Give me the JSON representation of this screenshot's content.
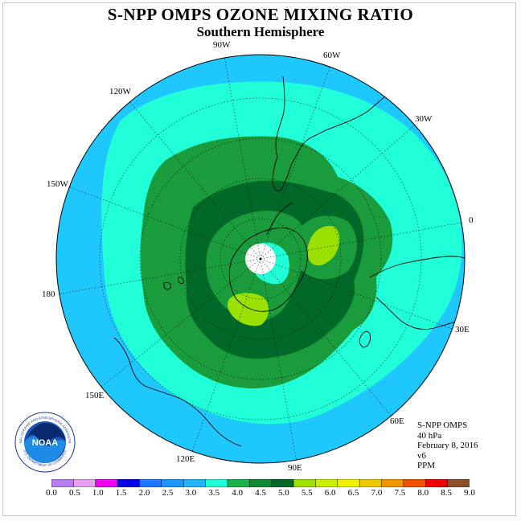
{
  "title": "S-NPP OMPS OZONE MIXING RATIO",
  "subtitle": "Southern Hemisphere",
  "longitude_labels": [
    "90W",
    "60W",
    "30W",
    "0",
    "30E",
    "60E",
    "90E",
    "120E",
    "150E",
    "180",
    "150W",
    "120W"
  ],
  "info": {
    "instrument": "S-NPP OMPS",
    "level": "40 hPa",
    "date": "February 8, 2016",
    "version": "v6",
    "units": "PPM"
  },
  "logo": {
    "text": "NOAA",
    "ring_text": "NATIONAL OCEANIC AND ATMOSPHERIC ADMINISTRATION",
    "bottom_text": "U.S. DEPARTMENT OF COMMERCE",
    "icon": "noaa-logo"
  },
  "colorbar": {
    "labels": [
      "0.0",
      "0.5",
      "1.0",
      "1.5",
      "2.0",
      "2.5",
      "3.0",
      "3.5",
      "4.0",
      "4.5",
      "5.0",
      "5.5",
      "6.0",
      "6.5",
      "7.0",
      "7.5",
      "8.0",
      "8.5",
      "9.0"
    ],
    "colors": [
      "#b77cf0",
      "#e6a0f0",
      "#f000f0",
      "#0000e6",
      "#1e78ff",
      "#1e96ff",
      "#22b4ff",
      "#20ffd8",
      "#18b048",
      "#108c38",
      "#006828",
      "#9ae000",
      "#c8f000",
      "#f0f000",
      "#f0c800",
      "#f09600",
      "#f05000",
      "#f00000",
      "#8c5028"
    ]
  },
  "map_fills": {
    "outer_ring": "#1ec8ff",
    "cyan": "#20ffd8",
    "green": "#1a9c3c",
    "dark_green": "#006828",
    "yellow_green": "#9ae000",
    "missing": "#ffffff"
  }
}
